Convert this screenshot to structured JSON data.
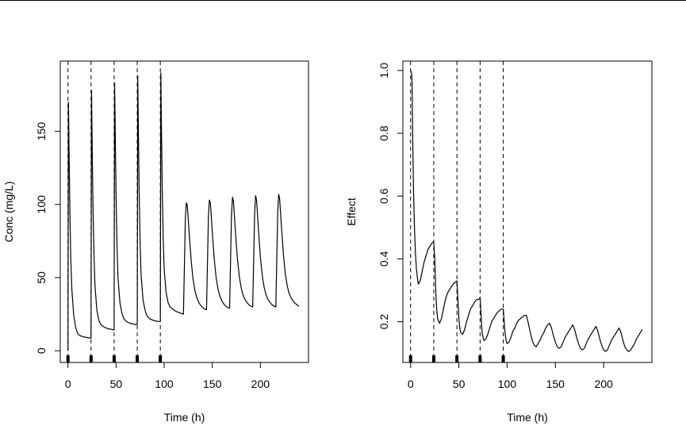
{
  "colors": {
    "line": "#000000",
    "background": "#ffffff",
    "dose_marker": "#000000"
  },
  "chart_data": [
    {
      "type": "line",
      "title": "",
      "xlabel": "Time (h)",
      "ylabel": "Conc (mg/L)",
      "xlim": [
        -8,
        250
      ],
      "ylim": [
        -8,
        198
      ],
      "xticks": [
        0,
        50,
        100,
        150,
        200
      ],
      "xtick_labels": [
        "0",
        "50",
        "100",
        "150",
        "200"
      ],
      "yticks": [
        0,
        50,
        100,
        150
      ],
      "ytick_labels": [
        "0",
        "50",
        "100",
        "150"
      ],
      "grid": false,
      "dose_times": [
        0,
        24,
        48,
        72,
        96
      ],
      "dose_lines": {
        "x": [
          0,
          24,
          48,
          72,
          96
        ],
        "style": "dashed"
      },
      "series": [
        {
          "x": [
            0,
            0.5,
            1,
            2,
            3,
            4,
            6,
            8,
            10,
            12,
            14,
            16,
            18,
            20,
            22,
            24,
            24,
            24.5,
            25,
            26,
            27,
            28,
            30,
            32,
            34,
            36,
            38,
            40,
            42,
            44,
            46,
            48,
            48,
            48.5,
            49,
            50,
            51,
            52,
            54,
            56,
            58,
            60,
            62,
            64,
            66,
            68,
            70,
            72,
            72,
            72.5,
            73,
            74,
            75,
            76,
            78,
            80,
            82,
            84,
            86,
            88,
            90,
            92,
            94,
            96,
            96,
            96.5,
            97,
            98,
            99,
            100,
            102,
            104,
            106,
            108,
            110,
            112,
            114,
            116,
            118,
            120,
            122,
            123,
            124,
            126,
            128,
            130,
            132,
            134,
            136,
            138,
            140,
            142,
            144,
            146,
            147,
            148,
            150,
            152,
            154,
            156,
            158,
            160,
            162,
            164,
            166,
            168,
            170,
            171,
            172,
            174,
            176,
            178,
            180,
            182,
            184,
            186,
            188,
            190,
            192,
            194,
            195,
            196,
            198,
            200,
            202,
            204,
            206,
            208,
            210,
            212,
            214,
            216,
            218,
            219,
            220,
            222,
            224,
            226,
            228,
            230,
            232,
            234,
            236,
            238,
            240
          ],
          "y": [
            0,
            170,
            145,
            95,
            62,
            42,
            24,
            16,
            12,
            10.5,
            10,
            9.5,
            9.3,
            9,
            8.8,
            8.6,
            8.6,
            178,
            150,
            100,
            66,
            45,
            28,
            21,
            18,
            17,
            16,
            15.5,
            15,
            14.8,
            14.5,
            14.2,
            14.2,
            183,
            155,
            104,
            70,
            50,
            33,
            26,
            22,
            20.5,
            19.5,
            19,
            18.5,
            18.2,
            18,
            18,
            18,
            188,
            158,
            107,
            73,
            52,
            35,
            28,
            24,
            22.5,
            21.5,
            21,
            20.5,
            20.2,
            20,
            20,
            20,
            190,
            160,
            110,
            76,
            56,
            40,
            33,
            30,
            29,
            28,
            27,
            26.5,
            26,
            25.5,
            25,
            90,
            101,
            100,
            80,
            62,
            49,
            41,
            36,
            33,
            31,
            29.5,
            28.5,
            28,
            92,
            103,
            101,
            81,
            63,
            50,
            42,
            37,
            34,
            32,
            30.5,
            29.5,
            29,
            93,
            105,
            102,
            82,
            64,
            51,
            43,
            38,
            35,
            33,
            31.5,
            30.5,
            30,
            94,
            106,
            103,
            83,
            64,
            51,
            43,
            38,
            35,
            33,
            31.5,
            30.5,
            30,
            95,
            107,
            104,
            84,
            65,
            52,
            44,
            39,
            36,
            34,
            32.5,
            31.5,
            30.5
          ]
        }
      ]
    },
    {
      "type": "line",
      "title": "",
      "xlabel": "Time (h)",
      "ylabel": "Effect",
      "xlim": [
        -8,
        250
      ],
      "ylim": [
        0.07,
        1.03
      ],
      "xticks": [
        0,
        50,
        100,
        150,
        200
      ],
      "xtick_labels": [
        "0",
        "50",
        "100",
        "150",
        "200"
      ],
      "yticks": [
        0.2,
        0.4,
        0.6,
        0.8,
        1.0
      ],
      "ytick_labels": [
        "0.2",
        "0.4",
        "0.6",
        "0.8",
        "1.0"
      ],
      "grid": false,
      "dose_times": [
        0,
        24,
        48,
        72,
        96
      ],
      "dose_lines": {
        "x": [
          0,
          24,
          48,
          72,
          96
        ],
        "style": "dashed"
      },
      "series": [
        {
          "x": [
            0,
            1,
            1.5,
            2,
            3,
            4,
            5,
            6,
            7,
            8,
            10,
            12,
            14,
            16,
            18,
            20,
            22,
            24,
            25,
            26,
            27,
            28,
            30,
            32,
            34,
            36,
            38,
            40,
            42,
            44,
            46,
            48,
            49,
            50,
            51,
            52,
            54,
            56,
            58,
            60,
            62,
            64,
            66,
            68,
            70,
            72,
            73,
            74,
            75,
            76,
            78,
            80,
            82,
            84,
            86,
            88,
            90,
            92,
            94,
            96,
            97,
            98,
            99,
            100,
            102,
            104,
            106,
            108,
            110,
            112,
            114,
            116,
            118,
            120,
            122,
            124,
            126,
            128,
            130,
            132,
            134,
            136,
            138,
            140,
            142,
            144,
            146,
            148,
            150,
            152,
            154,
            156,
            158,
            160,
            162,
            164,
            166,
            168,
            170,
            172,
            174,
            176,
            178,
            180,
            182,
            184,
            186,
            188,
            190,
            192,
            194,
            196,
            198,
            200,
            202,
            204,
            206,
            208,
            210,
            212,
            214,
            216,
            218,
            220,
            222,
            224,
            226,
            228,
            230,
            232,
            234,
            236,
            238,
            240
          ],
          "y": [
            1.0,
            0.99,
            0.96,
            0.82,
            0.62,
            0.5,
            0.42,
            0.37,
            0.34,
            0.32,
            0.33,
            0.36,
            0.39,
            0.41,
            0.43,
            0.44,
            0.45,
            0.455,
            0.4,
            0.3,
            0.24,
            0.21,
            0.195,
            0.21,
            0.24,
            0.27,
            0.29,
            0.3,
            0.31,
            0.32,
            0.325,
            0.33,
            0.27,
            0.21,
            0.18,
            0.165,
            0.16,
            0.175,
            0.2,
            0.22,
            0.24,
            0.25,
            0.26,
            0.27,
            0.27,
            0.275,
            0.22,
            0.17,
            0.15,
            0.14,
            0.145,
            0.16,
            0.18,
            0.2,
            0.21,
            0.22,
            0.23,
            0.235,
            0.24,
            0.24,
            0.2,
            0.16,
            0.14,
            0.13,
            0.135,
            0.15,
            0.17,
            0.18,
            0.195,
            0.205,
            0.21,
            0.215,
            0.22,
            0.22,
            0.195,
            0.165,
            0.14,
            0.125,
            0.12,
            0.13,
            0.14,
            0.155,
            0.165,
            0.18,
            0.19,
            0.195,
            0.18,
            0.155,
            0.135,
            0.12,
            0.115,
            0.12,
            0.135,
            0.15,
            0.16,
            0.17,
            0.18,
            0.19,
            0.175,
            0.15,
            0.13,
            0.115,
            0.11,
            0.115,
            0.13,
            0.145,
            0.155,
            0.165,
            0.175,
            0.185,
            0.17,
            0.145,
            0.125,
            0.11,
            0.105,
            0.11,
            0.125,
            0.14,
            0.15,
            0.16,
            0.17,
            0.18,
            0.165,
            0.14,
            0.12,
            0.11,
            0.105,
            0.11,
            0.12,
            0.13,
            0.145,
            0.155,
            0.165,
            0.175
          ]
        }
      ]
    }
  ]
}
